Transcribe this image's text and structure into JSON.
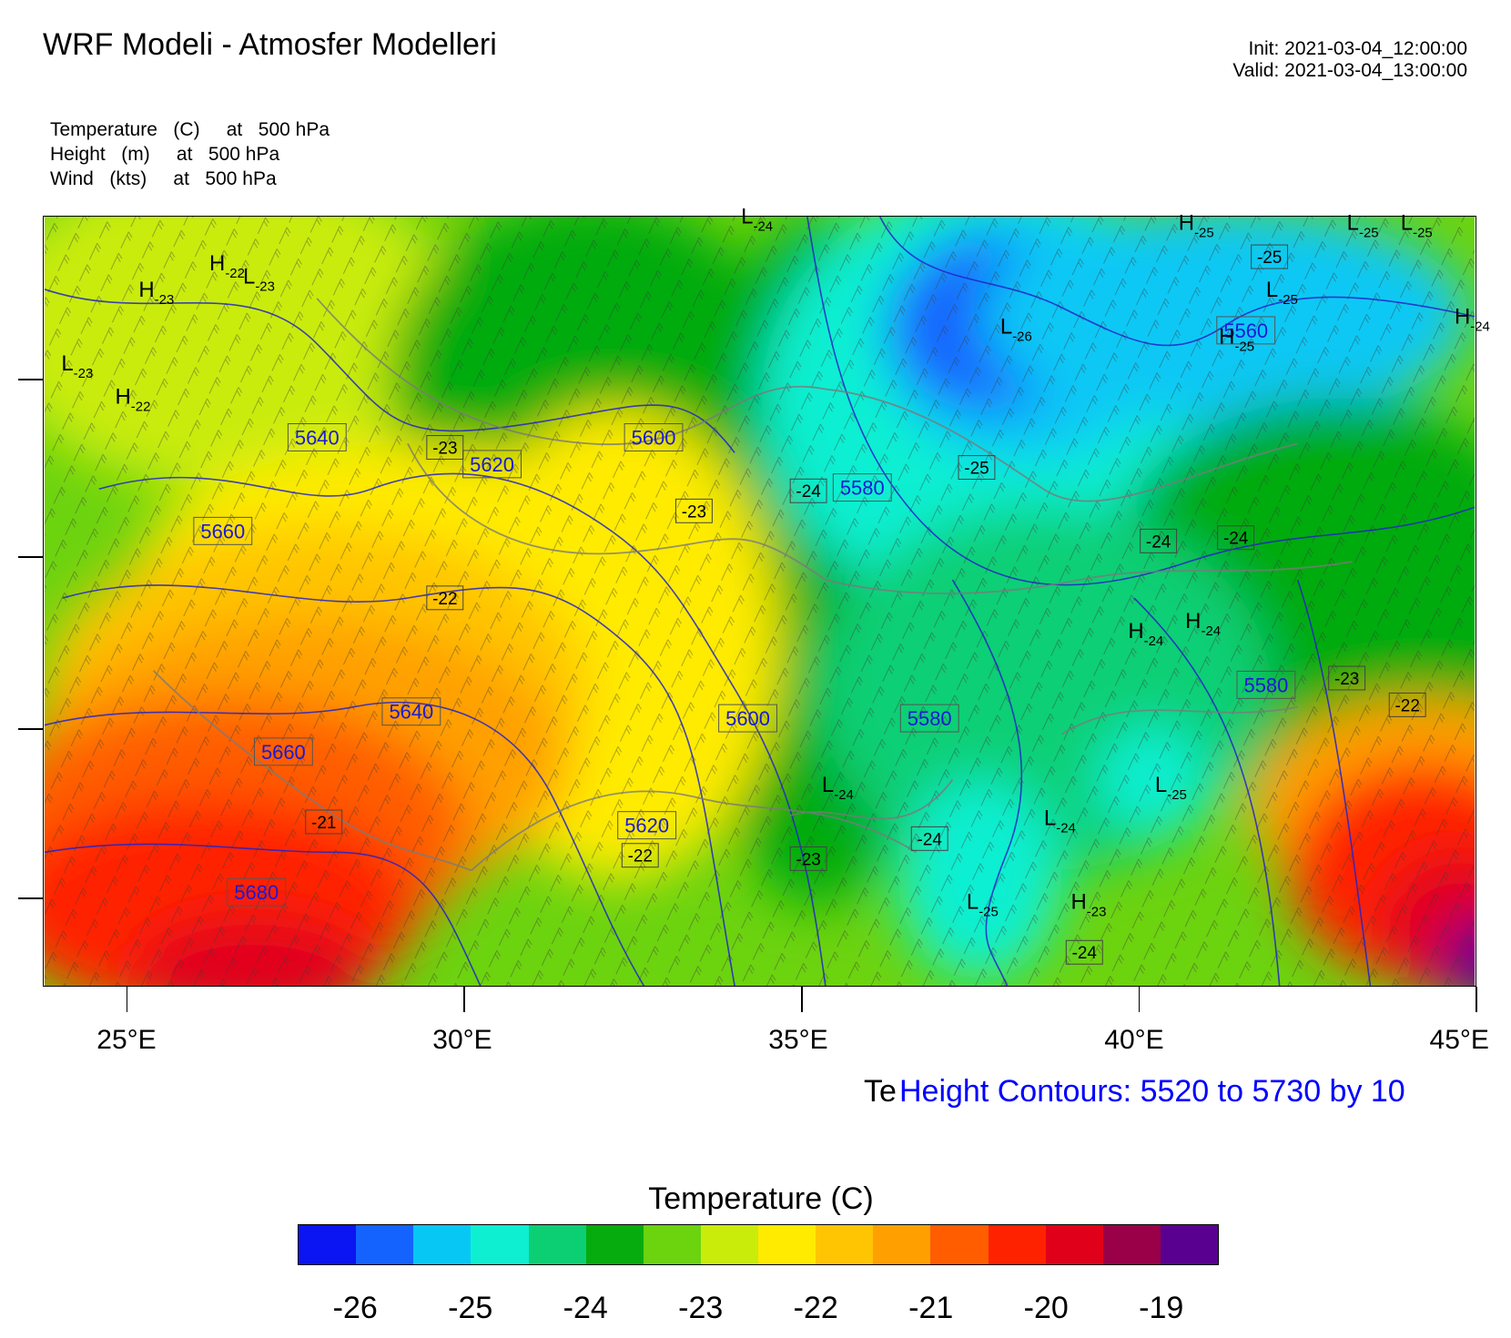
{
  "header": {
    "title": "WRF Modeli - Atmosfer Modelleri",
    "init": "Init: 2021-03-04_12:00:00",
    "valid": "Valid: 2021-03-04_13:00:00"
  },
  "fields": [
    {
      "name": "Temperature",
      "unit": "(C)",
      "at": "at",
      "level": "500 hPa"
    },
    {
      "name": "Height",
      "unit": "(m)",
      "at": "at",
      "level": "500 hPa"
    },
    {
      "name": "Wind",
      "unit": "(kts)",
      "at": "at",
      "level": "500 hPa"
    }
  ],
  "map": {
    "projection_lon_labels": [
      "25°E",
      "30°E",
      "35°E",
      "40°E",
      "45°E"
    ],
    "lon_range": [
      23.75,
      45.0
    ],
    "lat_range": [
      34.5,
      46.0
    ],
    "height_contour_labels": [
      {
        "text": "5640",
        "lon": 27.8,
        "lat": 42.7
      },
      {
        "text": "5620",
        "lon": 30.4,
        "lat": 42.3
      },
      {
        "text": "5600",
        "lon": 32.8,
        "lat": 42.7
      },
      {
        "text": "5660",
        "lon": 26.4,
        "lat": 41.3
      },
      {
        "text": "5580",
        "lon": 35.9,
        "lat": 41.95
      },
      {
        "text": "5560",
        "lon": 41.6,
        "lat": 44.3
      },
      {
        "text": "5640",
        "lon": 29.2,
        "lat": 38.6
      },
      {
        "text": "5660",
        "lon": 27.3,
        "lat": 38.0
      },
      {
        "text": "5600",
        "lon": 34.2,
        "lat": 38.5
      },
      {
        "text": "5580",
        "lon": 36.9,
        "lat": 38.5
      },
      {
        "text": "5580",
        "lon": 41.9,
        "lat": 39.0
      },
      {
        "text": "5620",
        "lon": 32.7,
        "lat": 36.9
      },
      {
        "text": "5680",
        "lon": 26.9,
        "lat": 35.9
      }
    ],
    "temperature_labels": [
      {
        "text": "-23",
        "lon": 29.7,
        "lat": 42.55
      },
      {
        "text": "-22",
        "lon": 29.7,
        "lat": 40.3
      },
      {
        "text": "-23",
        "lon": 33.4,
        "lat": 41.6
      },
      {
        "text": "-24",
        "lon": 35.1,
        "lat": 41.9
      },
      {
        "text": "-25",
        "lon": 37.6,
        "lat": 42.25
      },
      {
        "text": "-25",
        "lon": 41.95,
        "lat": 45.4
      },
      {
        "text": "-24",
        "lon": 40.3,
        "lat": 41.15
      },
      {
        "text": "-24",
        "lon": 41.45,
        "lat": 41.2
      },
      {
        "text": "-23",
        "lon": 43.1,
        "lat": 39.1
      },
      {
        "text": "-22",
        "lon": 44.0,
        "lat": 38.7
      },
      {
        "text": "-24",
        "lon": 36.9,
        "lat": 36.7
      },
      {
        "text": "-23",
        "lon": 35.1,
        "lat": 36.4
      },
      {
        "text": "-22",
        "lon": 32.6,
        "lat": 36.45
      },
      {
        "text": "-21",
        "lon": 27.9,
        "lat": 36.95
      },
      {
        "text": "-24",
        "lon": 39.2,
        "lat": 35.0
      }
    ],
    "pressure_centers": [
      {
        "kind": "L",
        "value": "-24",
        "lon": 34.1,
        "lat": 45.9
      },
      {
        "kind": "H",
        "value": "-25",
        "lon": 40.6,
        "lat": 45.8
      },
      {
        "kind": "L",
        "value": "-25",
        "lon": 43.1,
        "lat": 45.8
      },
      {
        "kind": "L",
        "value": "-25",
        "lon": 43.9,
        "lat": 45.8
      },
      {
        "kind": "L",
        "value": "-25",
        "lon": 41.9,
        "lat": 44.8
      },
      {
        "kind": "H",
        "value": "-24",
        "lon": 44.7,
        "lat": 44.4
      },
      {
        "kind": "H",
        "value": "-25",
        "lon": 41.2,
        "lat": 44.1
      },
      {
        "kind": "L",
        "value": "-26",
        "lon": 37.95,
        "lat": 44.25
      },
      {
        "kind": "H",
        "value": "-22",
        "lon": 26.2,
        "lat": 45.2
      },
      {
        "kind": "L",
        "value": "-23",
        "lon": 26.7,
        "lat": 45.0
      },
      {
        "kind": "H",
        "value": "-23",
        "lon": 25.15,
        "lat": 44.8
      },
      {
        "kind": "L",
        "value": "-23",
        "lon": 24.0,
        "lat": 43.7
      },
      {
        "kind": "H",
        "value": "-22",
        "lon": 24.8,
        "lat": 43.2
      },
      {
        "kind": "H",
        "value": "-24",
        "lon": 39.85,
        "lat": 39.7
      },
      {
        "kind": "H",
        "value": "-24",
        "lon": 40.7,
        "lat": 39.85
      },
      {
        "kind": "L",
        "value": "-24",
        "lon": 35.3,
        "lat": 37.4
      },
      {
        "kind": "L",
        "value": "-25",
        "lon": 40.25,
        "lat": 37.4
      },
      {
        "kind": "L",
        "value": "-24",
        "lon": 38.6,
        "lat": 36.9
      },
      {
        "kind": "L",
        "value": "-25",
        "lon": 37.45,
        "lat": 35.65
      },
      {
        "kind": "H",
        "value": "-23",
        "lon": 39.0,
        "lat": 35.65
      }
    ]
  },
  "contour_note": {
    "partial": "Te",
    "text": "Height Contours: 5520 to 5730 by 10"
  },
  "legend": {
    "title": "Temperature  (C)",
    "colors": [
      "#0b14f2",
      "#1463ff",
      "#07c8f5",
      "#0eefd2",
      "#0ccf74",
      "#06ab0d",
      "#6cd30f",
      "#c9ec0b",
      "#ffeb00",
      "#ffc503",
      "#ffa000",
      "#ff5d00",
      "#ff2200",
      "#e1001a",
      "#990048",
      "#5a0090"
    ],
    "labels": [
      "-26",
      "-25",
      "-24",
      "-23",
      "-22",
      "-21",
      "-20",
      "-19"
    ]
  }
}
